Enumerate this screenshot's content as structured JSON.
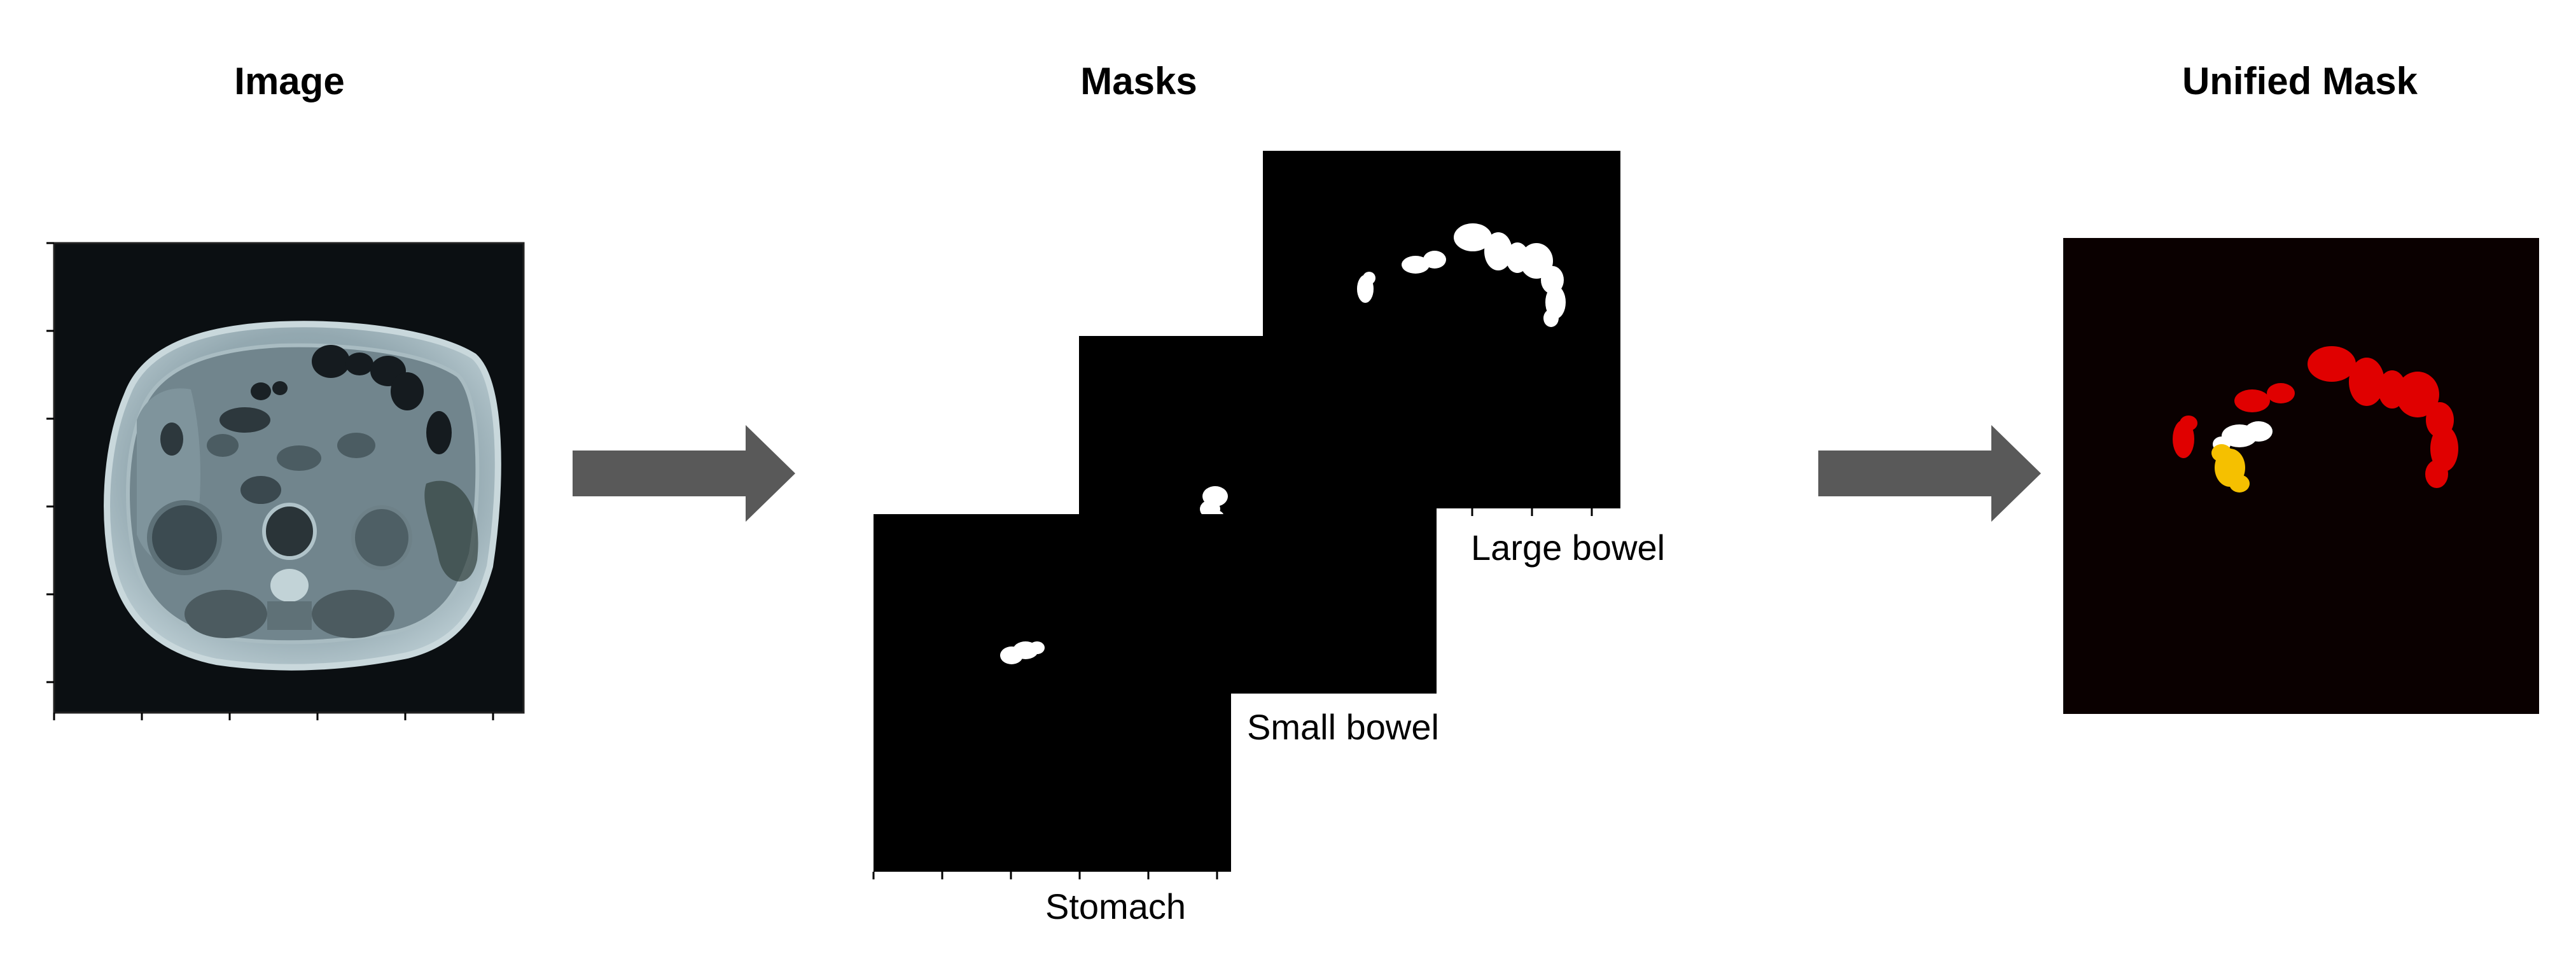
{
  "titles": {
    "image": "Image",
    "masks": "Masks",
    "unified": "Unified Mask"
  },
  "mask_labels": {
    "large_bowel": "Large bowel",
    "small_bowel": "Small bowel",
    "stomach": "Stomach"
  },
  "colors": {
    "background": "#ffffff",
    "mask_background": "#000000",
    "mask_foreground": "#ffffff",
    "unified_background": "#0a0000",
    "large_bowel": "#e00000",
    "small_bowel": "#ffffff",
    "stomach": "#f5c000",
    "arrow": "#595959",
    "mri_dark": "#0b0f12",
    "mri_tissue": "#8fa4ac"
  }
}
